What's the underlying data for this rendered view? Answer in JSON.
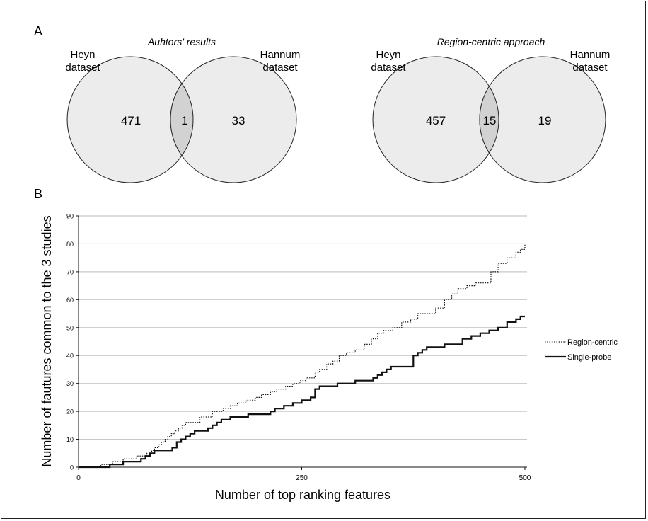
{
  "panels": {
    "a_label": "A",
    "b_label": "B"
  },
  "venn": [
    {
      "title": "Auhtors' results",
      "left_label_line1": "Heyn",
      "left_label_line2": "dataset",
      "right_label_line1": "Hannum",
      "right_label_line2": "dataset",
      "left_only": "471",
      "overlap": "1",
      "right_only": "33"
    },
    {
      "title": "Region-centric approach",
      "left_label_line1": "Heyn",
      "left_label_line2": "dataset",
      "right_label_line1": "Hannum",
      "right_label_line2": "dataset",
      "left_only": "457",
      "overlap": "15",
      "right_only": "19"
    }
  ],
  "colors": {
    "circle_fill": "#ececec",
    "overlap_fill": "#d2d2d2",
    "grid": "#c8c8c8",
    "line": "#111111"
  },
  "chart_data": {
    "type": "line",
    "xlabel": "Number of top ranking features",
    "ylabel": "Number of fautures common to the 3 studies",
    "xlim": [
      0,
      500
    ],
    "ylim": [
      0,
      90
    ],
    "xticks": [
      "0",
      "250",
      "500"
    ],
    "yticks": [
      "0",
      "10",
      "20",
      "30",
      "40",
      "50",
      "60",
      "70",
      "80",
      "90"
    ],
    "grid": "horizontal",
    "legend_position": "right",
    "series": [
      {
        "name": "Region-centric",
        "style": "dotted",
        "x": [
          0,
          22,
          25,
          35,
          38,
          45,
          50,
          60,
          65,
          72,
          76,
          82,
          85,
          90,
          93,
          97,
          100,
          104,
          108,
          112,
          116,
          120,
          132,
          136,
          150,
          162,
          170,
          178,
          188,
          198,
          205,
          215,
          222,
          232,
          240,
          248,
          255,
          265,
          270,
          278,
          285,
          292,
          300,
          310,
          320,
          328,
          335,
          342,
          352,
          362,
          372,
          380,
          392,
          400,
          410,
          418,
          425,
          435,
          445,
          455,
          462,
          470,
          480,
          490,
          495,
          500
        ],
        "y": [
          0,
          0,
          1,
          1,
          2,
          2,
          3,
          3,
          4,
          4,
          5,
          6,
          7,
          8,
          9,
          10,
          11,
          12,
          13,
          14,
          15,
          16,
          16,
          18,
          20,
          21,
          22,
          23,
          24,
          25,
          26,
          27,
          28,
          29,
          30,
          31,
          32,
          34,
          35,
          37,
          38,
          40,
          41,
          42,
          44,
          46,
          48,
          49,
          50,
          52,
          53,
          55,
          55,
          57,
          60,
          62,
          64,
          65,
          66,
          66,
          70,
          73,
          75,
          77,
          78,
          80
        ]
      },
      {
        "name": "Single-probe",
        "style": "solid",
        "x": [
          0,
          30,
          35,
          40,
          45,
          50,
          60,
          70,
          75,
          80,
          85,
          90,
          105,
          110,
          115,
          120,
          125,
          130,
          145,
          150,
          155,
          160,
          170,
          180,
          190,
          200,
          215,
          220,
          230,
          240,
          250,
          260,
          265,
          270,
          280,
          290,
          300,
          310,
          320,
          330,
          335,
          340,
          345,
          350,
          370,
          375,
          380,
          385,
          390,
          400,
          410,
          420,
          430,
          440,
          450,
          460,
          465,
          470,
          480,
          485,
          490,
          495,
          500
        ],
        "y": [
          0,
          0,
          1,
          1,
          1,
          2,
          2,
          3,
          4,
          5,
          6,
          6,
          7,
          9,
          10,
          11,
          12,
          13,
          14,
          15,
          16,
          17,
          18,
          18,
          19,
          19,
          20,
          21,
          22,
          23,
          24,
          25,
          28,
          29,
          29,
          30,
          30,
          31,
          31,
          32,
          33,
          34,
          35,
          36,
          36,
          40,
          41,
          42,
          43,
          43,
          44,
          44,
          46,
          47,
          48,
          49,
          49,
          50,
          52,
          52,
          53,
          54,
          54
        ]
      }
    ]
  }
}
